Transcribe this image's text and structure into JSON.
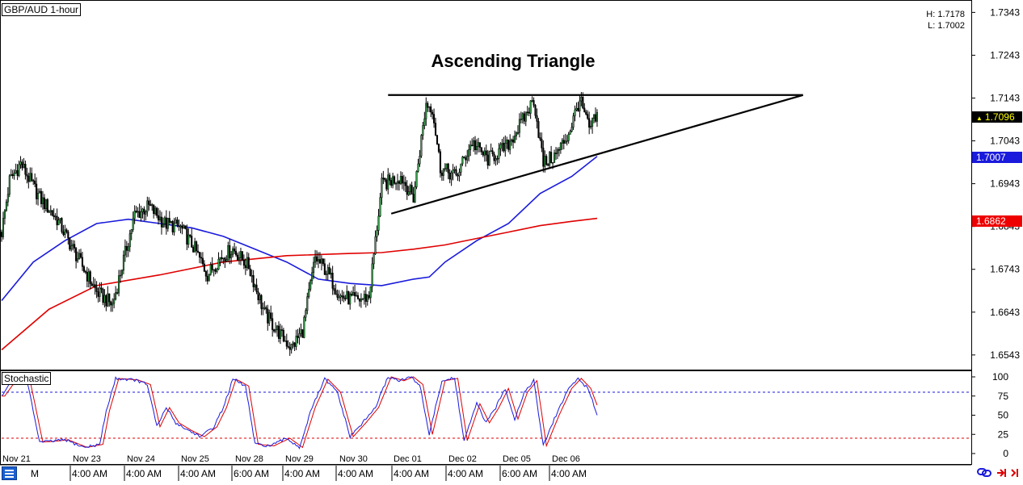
{
  "header": {
    "symbol_label": "GBP/AUD 1-hour",
    "high_label": "H: 1.7178",
    "low_label": "L: 1.7002"
  },
  "stochastic_label": "Stochastic",
  "bottom_left_label": "M",
  "price_tags": [
    {
      "value": "1.7096",
      "marker": "▲",
      "bg": "#000000",
      "fg": "#ffff00"
    },
    {
      "value": "1.7007",
      "bg": "#1a1adc",
      "fg": "#ffffff"
    },
    {
      "value": "1.6862",
      "bg": "#ee0000",
      "fg": "#ffffff"
    }
  ],
  "chart_data": {
    "type": "candlestick",
    "title": "Ascending Triangle",
    "y_axis": {
      "ticks": [
        "1.7343",
        "1.7243",
        "1.7143",
        "1.7043",
        "1.6943",
        "1.6843",
        "1.6743",
        "1.6643",
        "1.6543"
      ],
      "range": [
        1.6522,
        1.7355
      ]
    },
    "x_axis": {
      "date_labels": [
        "Nov 21",
        "Nov 23",
        "Nov 24",
        "Nov 25",
        "Nov 28",
        "Nov 29",
        "Nov 30",
        "Dec 01",
        "Dec 02",
        "Dec 05",
        "Dec 06"
      ],
      "time_labels": [
        "4:00 AM",
        "4:00 AM",
        "4:00 AM",
        "6:00 AM",
        "4:00 AM",
        "4:00 AM",
        "4:00 AM",
        "4:00 AM",
        "6:00 AM",
        "4:00 AM"
      ]
    },
    "close_path": [
      [
        0,
        1.683
      ],
      [
        5,
        1.695
      ],
      [
        12,
        1.699
      ],
      [
        24,
        1.691
      ],
      [
        35,
        1.686
      ],
      [
        48,
        1.677
      ],
      [
        60,
        1.669
      ],
      [
        70,
        1.666
      ],
      [
        76,
        1.675
      ],
      [
        84,
        1.687
      ],
      [
        93,
        1.689
      ],
      [
        103,
        1.685
      ],
      [
        113,
        1.684
      ],
      [
        122,
        1.679
      ],
      [
        130,
        1.673
      ],
      [
        138,
        1.677
      ],
      [
        146,
        1.679
      ],
      [
        156,
        1.675
      ],
      [
        166,
        1.664
      ],
      [
        176,
        1.659
      ],
      [
        183,
        1.656
      ],
      [
        190,
        1.66
      ],
      [
        198,
        1.677
      ],
      [
        205,
        1.674
      ],
      [
        214,
        1.668
      ],
      [
        224,
        1.667
      ],
      [
        232,
        1.668
      ],
      [
        240,
        1.694
      ],
      [
        252,
        1.696
      ],
      [
        260,
        1.691
      ],
      [
        268,
        1.713
      ],
      [
        272,
        1.712
      ],
      [
        277,
        1.698
      ],
      [
        287,
        1.696
      ],
      [
        297,
        1.704
      ],
      [
        307,
        1.7
      ],
      [
        319,
        1.703
      ],
      [
        329,
        1.709
      ],
      [
        336,
        1.714
      ],
      [
        342,
        1.699
      ],
      [
        350,
        1.701
      ],
      [
        358,
        1.706
      ],
      [
        365,
        1.714
      ],
      [
        371,
        1.707
      ],
      [
        376,
        1.71
      ]
    ],
    "series": [
      {
        "name": "",
        "color": "#1a1adc",
        "points": [
          [
            0,
            1.667
          ],
          [
            20,
            1.676
          ],
          [
            40,
            1.681
          ],
          [
            60,
            1.685
          ],
          [
            80,
            1.686
          ],
          [
            100,
            1.685
          ],
          [
            120,
            1.684
          ],
          [
            140,
            1.682
          ],
          [
            160,
            1.679
          ],
          [
            180,
            1.676
          ],
          [
            200,
            1.672
          ],
          [
            220,
            1.671
          ],
          [
            240,
            1.6705
          ],
          [
            260,
            1.672
          ],
          [
            270,
            1.6725
          ],
          [
            280,
            1.676
          ],
          [
            300,
            1.681
          ],
          [
            320,
            1.685
          ],
          [
            340,
            1.692
          ],
          [
            360,
            1.696
          ],
          [
            376,
            1.7007
          ]
        ]
      },
      {
        "name": "",
        "color": "#e00000",
        "points": [
          [
            0,
            1.6555
          ],
          [
            30,
            1.665
          ],
          [
            60,
            1.6705
          ],
          [
            100,
            1.673
          ],
          [
            140,
            1.676
          ],
          [
            180,
            1.6775
          ],
          [
            220,
            1.678
          ],
          [
            240,
            1.6782
          ],
          [
            260,
            1.679
          ],
          [
            280,
            1.68
          ],
          [
            300,
            1.6815
          ],
          [
            320,
            1.683
          ],
          [
            340,
            1.6845
          ],
          [
            360,
            1.6855
          ],
          [
            376,
            1.6862
          ]
        ]
      }
    ],
    "annotations": {
      "resistance": [
        [
          244,
          1.715
        ],
        [
          506,
          1.715
        ]
      ],
      "support": [
        [
          246,
          1.6873
        ],
        [
          506,
          1.715
        ]
      ]
    },
    "stochastic": {
      "y_ticks": [
        "100",
        "75",
        "50",
        "25",
        "0"
      ],
      "levels": [
        80,
        20
      ],
      "k_path": [
        [
          0,
          75
        ],
        [
          8,
          98
        ],
        [
          16,
          95
        ],
        [
          24,
          15
        ],
        [
          32,
          16
        ],
        [
          40,
          18
        ],
        [
          52,
          8
        ],
        [
          62,
          12
        ],
        [
          66,
          55
        ],
        [
          72,
          98
        ],
        [
          84,
          96
        ],
        [
          92,
          90
        ],
        [
          98,
          35
        ],
        [
          104,
          60
        ],
        [
          110,
          40
        ],
        [
          118,
          30
        ],
        [
          126,
          22
        ],
        [
          134,
          35
        ],
        [
          140,
          60
        ],
        [
          146,
          97
        ],
        [
          154,
          88
        ],
        [
          160,
          12
        ],
        [
          170,
          10
        ],
        [
          180,
          20
        ],
        [
          188,
          8
        ],
        [
          196,
          60
        ],
        [
          204,
          97
        ],
        [
          212,
          80
        ],
        [
          220,
          22
        ],
        [
          228,
          40
        ],
        [
          236,
          60
        ],
        [
          244,
          100
        ],
        [
          252,
          95
        ],
        [
          258,
          100
        ],
        [
          264,
          90
        ],
        [
          270,
          25
        ],
        [
          278,
          95
        ],
        [
          286,
          98
        ],
        [
          292,
          17
        ],
        [
          300,
          65
        ],
        [
          306,
          40
        ],
        [
          312,
          60
        ],
        [
          318,
          85
        ],
        [
          324,
          45
        ],
        [
          330,
          80
        ],
        [
          336,
          95
        ],
        [
          342,
          10
        ],
        [
          350,
          50
        ],
        [
          358,
          85
        ],
        [
          364,
          98
        ],
        [
          370,
          85
        ],
        [
          376,
          52
        ]
      ]
    }
  }
}
